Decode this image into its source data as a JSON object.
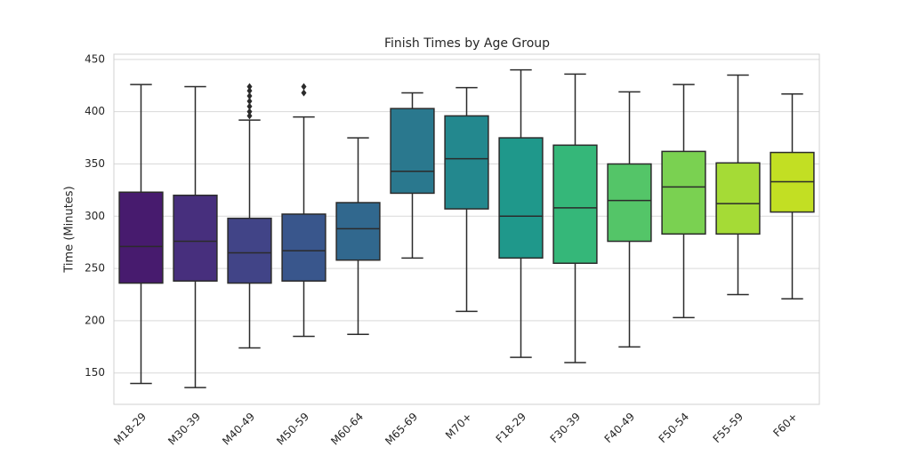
{
  "chart_data": {
    "type": "box",
    "title": "Finish Times by Age Group",
    "y_label": "Time (Minutes)",
    "categories": [
      "M18-29",
      "M30-39",
      "M40-49",
      "M50-59",
      "M60-64",
      "M65-69",
      "M70+",
      "F18-29",
      "F30-39",
      "F40-49",
      "F50-54",
      "F55-59",
      "F60+"
    ],
    "colors": [
      "#471b6e",
      "#472f7d",
      "#414487",
      "#39568c",
      "#31688e",
      "#2a788e",
      "#23888e",
      "#1f988b",
      "#35b779",
      "#54c568",
      "#7ad151",
      "#a5db36",
      "#c2df23"
    ],
    "boxes": [
      {
        "low": 140,
        "q1": 236,
        "median": 271,
        "q3": 323,
        "high": 426,
        "outliers": []
      },
      {
        "low": 136,
        "q1": 238,
        "median": 276,
        "q3": 320,
        "high": 424,
        "outliers": []
      },
      {
        "low": 174,
        "q1": 236,
        "median": 265,
        "q3": 298,
        "high": 392,
        "outliers": [
          424,
          420,
          415,
          410,
          405,
          400,
          396
        ]
      },
      {
        "low": 185,
        "q1": 238,
        "median": 267,
        "q3": 302,
        "high": 395,
        "outliers": [
          424,
          418
        ]
      },
      {
        "low": 187,
        "q1": 258,
        "median": 288,
        "q3": 313,
        "high": 375,
        "outliers": []
      },
      {
        "low": 260,
        "q1": 322,
        "median": 343,
        "q3": 403,
        "high": 418,
        "outliers": []
      },
      {
        "low": 209,
        "q1": 307,
        "median": 355,
        "q3": 396,
        "high": 423,
        "outliers": []
      },
      {
        "low": 165,
        "q1": 260,
        "median": 300,
        "q3": 375,
        "high": 440,
        "outliers": []
      },
      {
        "low": 160,
        "q1": 255,
        "median": 308,
        "q3": 368,
        "high": 436,
        "outliers": []
      },
      {
        "low": 175,
        "q1": 276,
        "median": 315,
        "q3": 350,
        "high": 419,
        "outliers": []
      },
      {
        "low": 203,
        "q1": 283,
        "median": 328,
        "q3": 362,
        "high": 426,
        "outliers": []
      },
      {
        "low": 225,
        "q1": 283,
        "median": 312,
        "q3": 351,
        "high": 435,
        "outliers": []
      },
      {
        "low": 221,
        "q1": 304,
        "median": 333,
        "q3": 361,
        "high": 417,
        "outliers": []
      }
    ],
    "ylim": [
      120,
      455
    ],
    "yticks": [
      150,
      200,
      250,
      300,
      350,
      400,
      450
    ],
    "grid": true
  }
}
